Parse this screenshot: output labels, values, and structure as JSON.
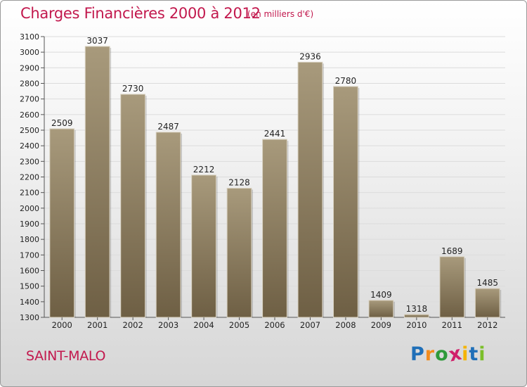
{
  "title": "Charges Financières 2000 à 2012",
  "subtitle": "(en milliers d'€)",
  "city": "SAINT-MALO",
  "logo": {
    "text": "Proxiti",
    "letters": [
      {
        "ch": "P",
        "color": "#1f6fb8"
      },
      {
        "ch": "r",
        "color": "#f28c1e"
      },
      {
        "ch": "o",
        "color": "#2e9a3a"
      },
      {
        "ch": "x",
        "color": "#d01f6a"
      },
      {
        "ch": "i",
        "color": "#f5b400"
      },
      {
        "ch": "t",
        "color": "#1f6fb8"
      },
      {
        "ch": "i",
        "color": "#7bbf2a"
      }
    ]
  },
  "colors": {
    "title": "#c2184d",
    "bar_top": "#a89a7c",
    "bar_bottom": "#6e5f44",
    "grid": "#dcdcdc",
    "axis_text": "#222222"
  },
  "chart_data": {
    "type": "bar",
    "title": "Charges Financières 2000 à 2012",
    "subtitle": "(en milliers d'€)",
    "categories": [
      "2000",
      "2001",
      "2002",
      "2003",
      "2004",
      "2005",
      "2006",
      "2007",
      "2008",
      "2009",
      "2010",
      "2011",
      "2012"
    ],
    "values": [
      2509,
      3037,
      2730,
      2487,
      2212,
      2128,
      2441,
      2936,
      2780,
      1409,
      1318,
      1689,
      1485
    ],
    "ylim": [
      1300,
      3100
    ],
    "yticks": [
      1300,
      1400,
      1500,
      1600,
      1700,
      1800,
      1900,
      2000,
      2100,
      2200,
      2300,
      2400,
      2500,
      2600,
      2700,
      2800,
      2900,
      3000,
      3100
    ],
    "grid": true,
    "data_labels": true
  }
}
